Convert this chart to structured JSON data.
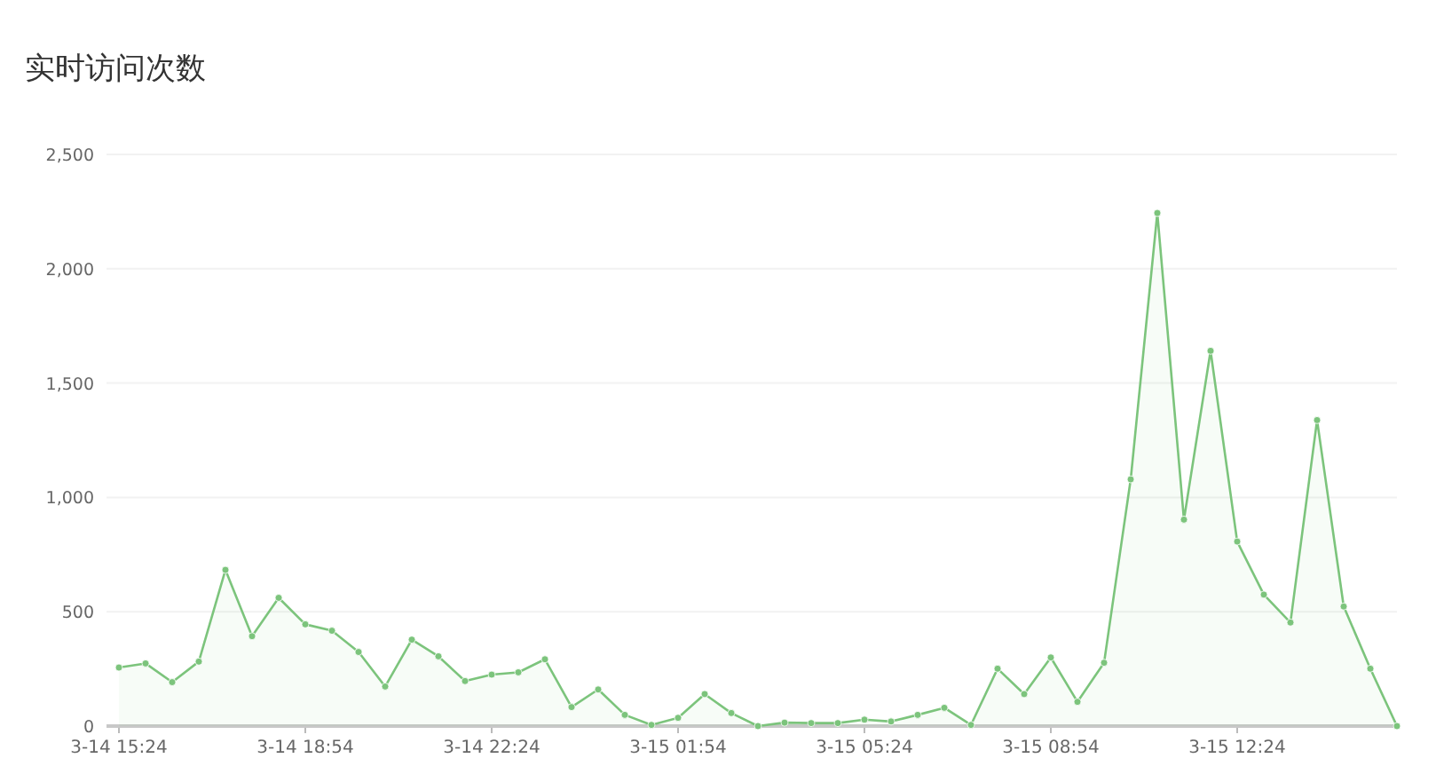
{
  "chart_data": {
    "type": "area",
    "title": "实时访问次数",
    "categories": [
      "3-14 15:24",
      null,
      null,
      null,
      null,
      null,
      null,
      "3-14 18:54",
      null,
      null,
      null,
      null,
      null,
      null,
      "3-14 22:24",
      null,
      null,
      null,
      null,
      null,
      null,
      "3-15 01:54",
      null,
      null,
      null,
      null,
      null,
      null,
      "3-15 05:24",
      null,
      null,
      null,
      null,
      null,
      null,
      "3-15 08:54",
      null,
      null,
      null,
      null,
      null,
      null,
      "3-15 12:24",
      null,
      null,
      null,
      null,
      null,
      null
    ],
    "series": [
      {
        "color": "#7cc47c",
        "values": [
          256,
          274,
          192,
          282,
          683,
          393,
          561,
          445,
          417,
          324,
          173,
          378,
          305,
          197,
          225,
          235,
          292,
          83,
          160,
          49,
          5,
          36,
          140,
          57,
          0,
          15,
          13,
          13,
          28,
          20,
          49,
          80,
          5,
          251,
          140,
          300,
          106,
          277,
          1079,
          2244,
          903,
          1641,
          807,
          575,
          453,
          1338,
          523,
          251,
          0
        ]
      }
    ],
    "ylim": [
      0,
      2500
    ],
    "yticks": [
      0,
      {
        "value": 500,
        "label": "500"
      },
      {
        "value": 1000,
        "label": "1,000"
      },
      {
        "value": 1500,
        "label": "1,500"
      },
      {
        "value": 2000,
        "label": "2,000"
      },
      {
        "value": 2500,
        "label": "2,500"
      }
    ],
    "grid": "y",
    "marker": "circle"
  }
}
